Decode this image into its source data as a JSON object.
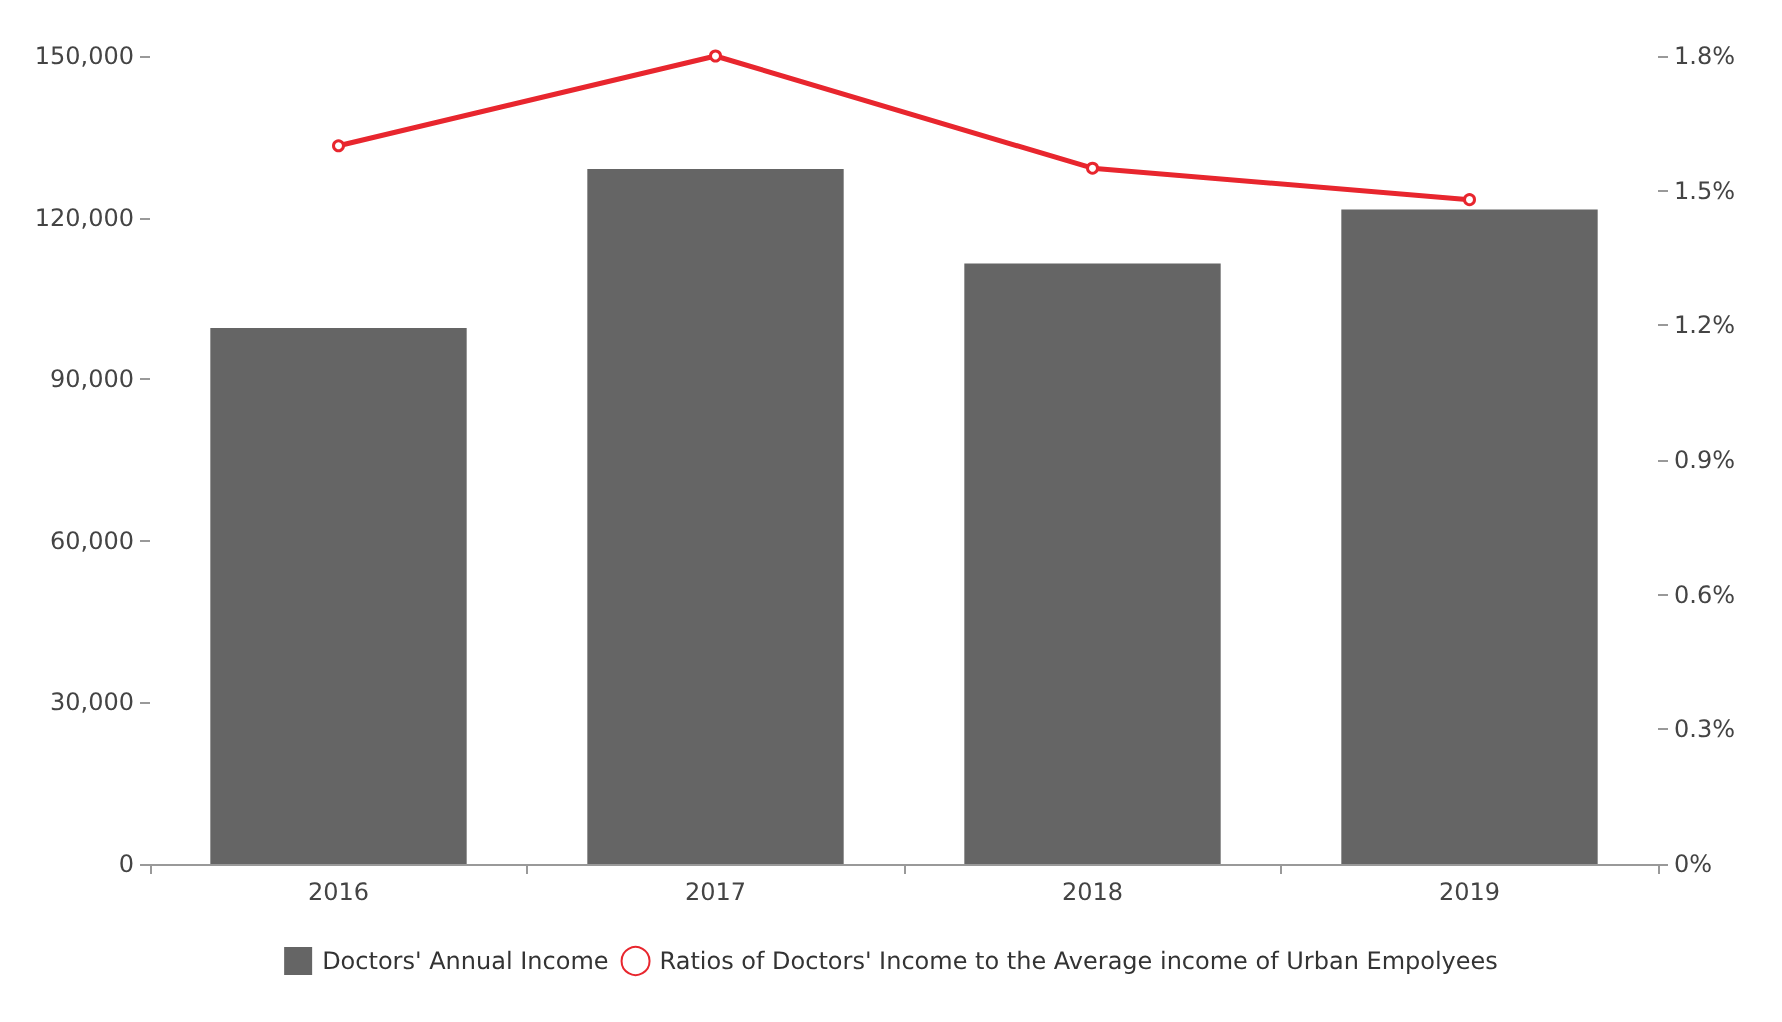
{
  "chart_data": {
    "type": "bar",
    "categories": [
      "2016",
      "2017",
      "2018",
      "2019"
    ],
    "series": [
      {
        "name": "Doctors' Annual Income",
        "color": "#656565",
        "values": [
          99500,
          129000,
          111500,
          121500
        ]
      },
      {
        "name": "Ratios of Doctors' Income to the Average income of Urban Empolyees",
        "type": "line",
        "axis": "y2",
        "color": "#e8262e",
        "values": [
          1.6,
          1.8,
          1.55,
          1.48
        ]
      }
    ],
    "ylim": [
      0,
      150000
    ],
    "yticks": [
      {
        "value": 0,
        "label": "0"
      },
      {
        "value": 30000,
        "label": "30,000"
      },
      {
        "value": 60000,
        "label": "60,000"
      },
      {
        "value": 90000,
        "label": "90,000"
      },
      {
        "value": 120000,
        "label": "120,000"
      },
      {
        "value": 150000,
        "label": "150,000"
      }
    ],
    "y2lim": [
      0,
      1.8
    ],
    "y2ticks": [
      {
        "value": 0,
        "label": "0%"
      },
      {
        "value": 0.3,
        "label": "0.3%"
      },
      {
        "value": 0.6,
        "label": "0.6%"
      },
      {
        "value": 0.9,
        "label": "0.9%"
      },
      {
        "value": 1.2,
        "label": "1.2%"
      },
      {
        "value": 1.5,
        "label": "1.5%"
      },
      {
        "value": 1.8,
        "label": "1.8%"
      }
    ],
    "grid": false,
    "legend": "bottom",
    "marker": "circle",
    "line_style": "solid"
  }
}
